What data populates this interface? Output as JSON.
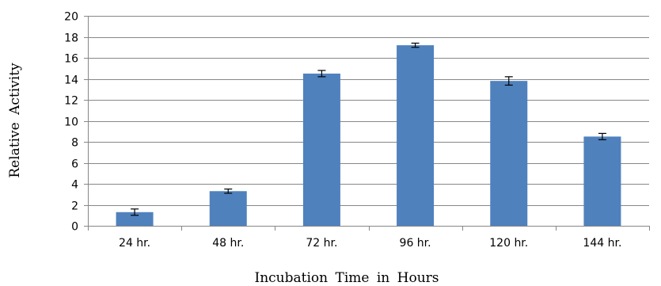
{
  "chart_data": {
    "type": "bar",
    "title": "",
    "xlabel": "Incubation Time in Hours",
    "ylabel": "Relative Activity",
    "categories": [
      "24 hr.",
      "48 hr.",
      "72 hr.",
      "96 hr.",
      "120 hr.",
      "144 hr."
    ],
    "values": [
      1.3,
      3.3,
      14.5,
      17.2,
      13.8,
      8.5
    ],
    "error": [
      0.3,
      0.2,
      0.3,
      0.2,
      0.4,
      0.3
    ],
    "ylim": [
      0,
      20
    ],
    "yticks": [
      0,
      2,
      4,
      6,
      8,
      10,
      12,
      14,
      16,
      18,
      20
    ],
    "grid": true,
    "legend": "none",
    "colors": {
      "bar": "#4f81bd",
      "grid": "#878787",
      "axis": "#878787",
      "error": "#000000"
    }
  }
}
